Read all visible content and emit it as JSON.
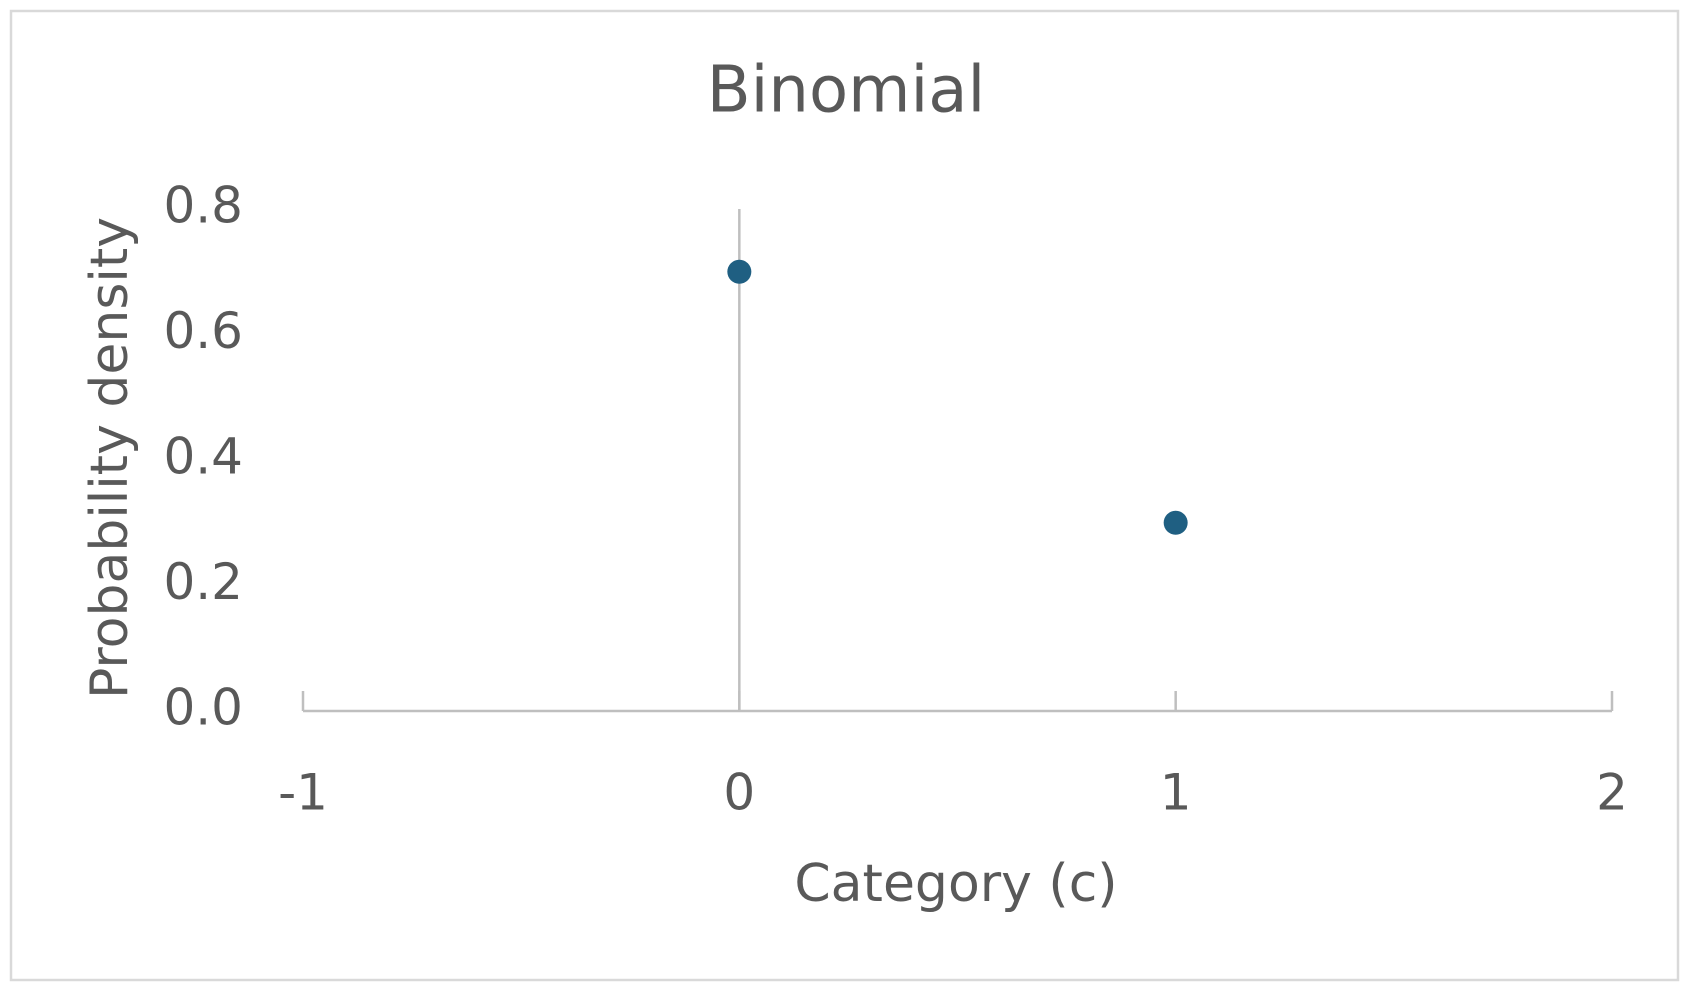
{
  "chart_data": {
    "type": "scatter",
    "title": "Binomial",
    "x_label": "Category (c)",
    "y_label": "Probability density",
    "x": [
      0,
      1
    ],
    "values": [
      0.7,
      0.3
    ],
    "color": "#1f5f82",
    "xlim": [
      -1,
      2
    ],
    "xticks": [
      -1,
      0,
      1,
      2
    ],
    "ylim": [
      0,
      0.8
    ],
    "yticks": [
      {
        "value": 0,
        "label": "0.0"
      },
      0.2,
      0.4,
      0.6,
      0.8
    ],
    "grid": false
  }
}
